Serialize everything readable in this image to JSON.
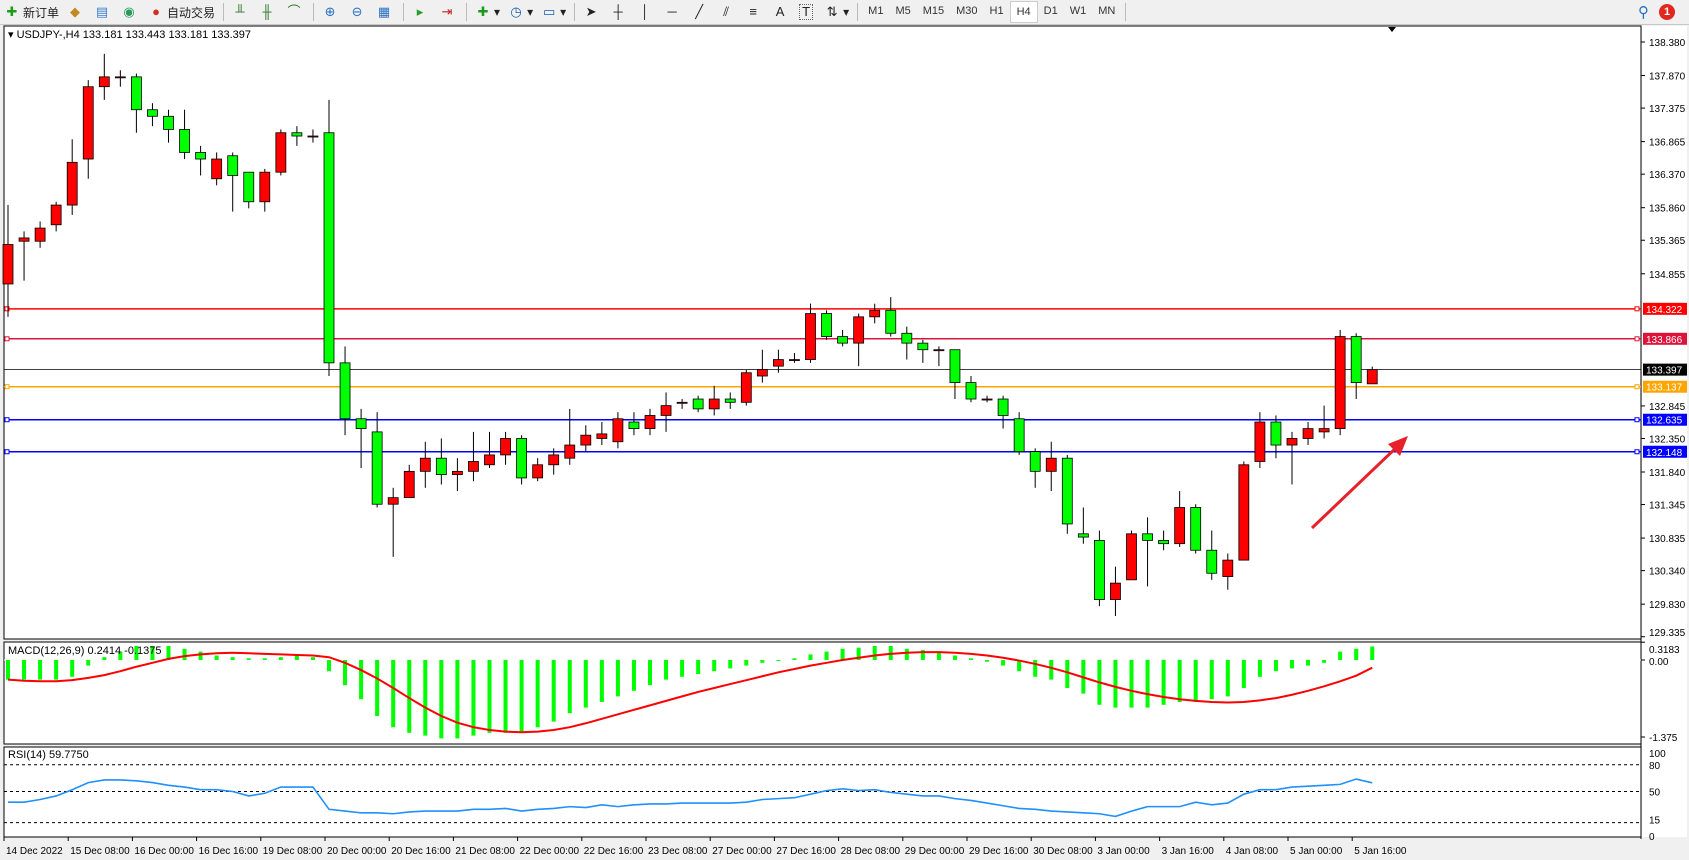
{
  "toolbar": {
    "new_order": "新订单",
    "auto_trading": "自动交易",
    "icons": [
      "new-order-icon",
      "market-watch-icon",
      "navigator-icon",
      "signal-icon",
      "auto-trading-icon",
      "bar-chart-icon",
      "candlestick-icon",
      "line-chart-icon",
      "zoom-in-icon",
      "zoom-out-icon",
      "tile-windows-icon",
      "autoscroll-icon",
      "chart-shift-icon",
      "indicators-icon",
      "periods-icon",
      "templates-icon",
      "cursor-icon",
      "crosshair-icon",
      "vertical-line-icon",
      "horizontal-line-icon",
      "trendline-icon",
      "equidistant-channel-icon",
      "fibonacci-icon",
      "text-icon",
      "text-label-icon",
      "arrows-icon"
    ],
    "text_tool": "A",
    "label_tool": "T",
    "timeframes": [
      "M1",
      "M5",
      "M15",
      "M30",
      "H1",
      "H4",
      "D1",
      "W1",
      "MN"
    ],
    "selected_timeframe": "H4",
    "notification_count": "1"
  },
  "chart": {
    "header": "USDJPY-,H4  133.181 133.443 133.181 133.397",
    "symbol": "USDJPY-",
    "timeframe": "H4",
    "open": 133.181,
    "high": 133.443,
    "low": 133.181,
    "close": 133.397,
    "bull_color": "#ff0000",
    "bear_color": "#00ff00",
    "price_ticks": [
      "138.380",
      "137.870",
      "137.375",
      "136.865",
      "136.370",
      "135.860",
      "135.365",
      "134.855",
      "132.845",
      "132.350",
      "131.840",
      "131.345",
      "130.835",
      "130.340",
      "129.830",
      "129.335"
    ],
    "levels": [
      {
        "price": "134.322",
        "color": "#ff0000"
      },
      {
        "price": "133.866",
        "color": "#dc143c"
      },
      {
        "price": "133.397",
        "color": "#000000",
        "current": true
      },
      {
        "price": "133.137",
        "color": "#ffa500"
      },
      {
        "price": "132.635",
        "color": "#0000ff"
      },
      {
        "price": "132.148",
        "color": "#0000ff"
      }
    ],
    "arrow_color": "#e8202a",
    "time_labels": [
      "14 Dec 2022",
      "15 Dec 08:00",
      "16 Dec 00:00",
      "16 Dec 16:00",
      "19 Dec 08:00",
      "20 Dec 00:00",
      "20 Dec 16:00",
      "21 Dec 08:00",
      "22 Dec 00:00",
      "22 Dec 16:00",
      "23 Dec 08:00",
      "27 Dec 00:00",
      "27 Dec 16:00",
      "28 Dec 08:00",
      "29 Dec 00:00",
      "29 Dec 16:00",
      "30 Dec 08:00",
      "3 Jan 00:00",
      "3 Jan 16:00",
      "4 Jan 08:00",
      "5 Jan 00:00",
      "5 Jan 16:00"
    ]
  },
  "chart_data": [
    {
      "type": "candlestick",
      "ohlc": [
        [
          134.7,
          135.9,
          134.2,
          135.3
        ],
        [
          135.35,
          135.5,
          134.75,
          135.4
        ],
        [
          135.35,
          135.65,
          135.25,
          135.55
        ],
        [
          135.6,
          135.95,
          135.5,
          135.9
        ],
        [
          135.9,
          136.9,
          135.75,
          136.55
        ],
        [
          136.6,
          137.8,
          136.3,
          137.7
        ],
        [
          137.7,
          138.2,
          137.5,
          137.85
        ],
        [
          137.85,
          137.95,
          137.7,
          137.85
        ],
        [
          137.85,
          137.9,
          137.0,
          137.35
        ],
        [
          137.35,
          137.45,
          137.1,
          137.25
        ],
        [
          137.25,
          137.35,
          136.85,
          137.05
        ],
        [
          137.05,
          137.35,
          136.6,
          136.7
        ],
        [
          136.7,
          136.8,
          136.35,
          136.6
        ],
        [
          136.3,
          136.7,
          136.2,
          136.6
        ],
        [
          136.65,
          136.7,
          135.8,
          136.35
        ],
        [
          136.4,
          136.4,
          135.85,
          135.95
        ],
        [
          135.95,
          136.45,
          135.8,
          136.4
        ],
        [
          136.4,
          137.05,
          136.35,
          137.0
        ],
        [
          137.0,
          137.1,
          136.8,
          136.95
        ],
        [
          136.95,
          137.05,
          136.85,
          136.95
        ],
        [
          137.0,
          137.5,
          133.3,
          133.5
        ],
        [
          133.5,
          133.75,
          132.4,
          132.65
        ],
        [
          132.65,
          132.8,
          131.9,
          132.5
        ],
        [
          132.45,
          132.75,
          131.3,
          131.35
        ],
        [
          131.35,
          131.6,
          130.55,
          131.45
        ],
        [
          131.45,
          131.95,
          131.45,
          131.85
        ],
        [
          131.85,
          132.3,
          131.6,
          132.05
        ],
        [
          132.05,
          132.35,
          131.65,
          131.8
        ],
        [
          131.8,
          132.05,
          131.55,
          131.85
        ],
        [
          131.85,
          132.45,
          131.7,
          132.0
        ],
        [
          131.95,
          132.45,
          131.9,
          132.1
        ],
        [
          132.1,
          132.45,
          131.95,
          132.35
        ],
        [
          132.35,
          132.4,
          131.65,
          131.75
        ],
        [
          131.75,
          132.05,
          131.7,
          131.95
        ],
        [
          131.95,
          132.2,
          131.8,
          132.1
        ],
        [
          132.05,
          132.8,
          131.95,
          132.25
        ],
        [
          132.25,
          132.55,
          132.15,
          132.4
        ],
        [
          132.35,
          132.6,
          132.25,
          132.42
        ],
        [
          132.3,
          132.75,
          132.2,
          132.65
        ],
        [
          132.6,
          132.75,
          132.4,
          132.5
        ],
        [
          132.5,
          132.8,
          132.4,
          132.7
        ],
        [
          132.7,
          133.05,
          132.45,
          132.85
        ],
        [
          132.9,
          132.95,
          132.8,
          132.9
        ],
        [
          132.95,
          133.0,
          132.75,
          132.8
        ],
        [
          132.8,
          133.15,
          132.7,
          132.95
        ],
        [
          132.95,
          133.05,
          132.8,
          132.9
        ],
        [
          132.9,
          133.4,
          132.85,
          133.35
        ],
        [
          133.3,
          133.7,
          133.2,
          133.4
        ],
        [
          133.45,
          133.7,
          133.35,
          133.55
        ],
        [
          133.55,
          133.65,
          133.5,
          133.55
        ],
        [
          133.55,
          134.4,
          133.5,
          134.25
        ],
        [
          134.25,
          134.3,
          133.85,
          133.9
        ],
        [
          133.9,
          134.0,
          133.75,
          133.8
        ],
        [
          133.8,
          134.25,
          133.45,
          134.2
        ],
        [
          134.2,
          134.4,
          134.1,
          134.3
        ],
        [
          134.3,
          134.5,
          133.9,
          133.95
        ],
        [
          133.95,
          134.05,
          133.55,
          133.8
        ],
        [
          133.8,
          133.85,
          133.5,
          133.7
        ],
        [
          133.7,
          133.75,
          133.45,
          133.7
        ],
        [
          133.7,
          133.7,
          132.95,
          133.2
        ],
        [
          133.2,
          133.3,
          132.9,
          132.95
        ],
        [
          132.95,
          133.0,
          132.9,
          132.95
        ],
        [
          132.95,
          133.0,
          132.5,
          132.7
        ],
        [
          132.65,
          132.75,
          132.1,
          132.15
        ],
        [
          132.15,
          132.2,
          131.6,
          131.85
        ],
        [
          131.85,
          132.3,
          131.55,
          132.05
        ],
        [
          132.05,
          132.1,
          130.9,
          131.05
        ],
        [
          130.9,
          131.3,
          130.75,
          130.85
        ],
        [
          130.8,
          130.95,
          129.8,
          129.9
        ],
        [
          129.9,
          130.4,
          129.65,
          130.15
        ],
        [
          130.2,
          130.95,
          130.2,
          130.9
        ],
        [
          130.9,
          131.15,
          130.1,
          130.8
        ],
        [
          130.8,
          130.95,
          130.65,
          130.75
        ],
        [
          130.75,
          131.55,
          130.7,
          131.3
        ],
        [
          131.3,
          131.35,
          130.6,
          130.65
        ],
        [
          130.65,
          130.95,
          130.2,
          130.3
        ],
        [
          130.25,
          130.6,
          130.05,
          130.5
        ],
        [
          130.5,
          132.0,
          130.5,
          131.95
        ],
        [
          132.0,
          132.75,
          131.9,
          132.6
        ],
        [
          132.6,
          132.7,
          132.05,
          132.25
        ],
        [
          132.25,
          132.45,
          131.65,
          132.35
        ],
        [
          132.35,
          132.6,
          132.25,
          132.5
        ],
        [
          132.45,
          132.85,
          132.35,
          132.5
        ],
        [
          132.5,
          134.0,
          132.4,
          133.9
        ],
        [
          133.9,
          133.95,
          132.95,
          133.2
        ],
        [
          133.181,
          133.443,
          133.181,
          133.397
        ]
      ],
      "ylim": [
        129.335,
        138.6
      ]
    },
    {
      "type": "bar",
      "title": "MACD(12,26,9) 0.2414 -0.1375",
      "ticks": [
        "0.3183",
        "0.00",
        "-1.375"
      ],
      "ylim": [
        -1.45,
        0.4
      ],
      "histogram_color": "#00ff00",
      "signal_color": "#ff0000",
      "histogram": [
        -0.35,
        -0.35,
        -0.35,
        -0.35,
        -0.3,
        -0.1,
        0.05,
        0.15,
        0.25,
        0.25,
        0.25,
        0.2,
        0.15,
        0.08,
        0.05,
        0.03,
        0.03,
        0.05,
        0.08,
        0.05,
        -0.2,
        -0.45,
        -0.7,
        -1.0,
        -1.2,
        -1.3,
        -1.35,
        -1.4,
        -1.4,
        -1.35,
        -1.3,
        -1.3,
        -1.3,
        -1.2,
        -1.1,
        -0.95,
        -0.85,
        -0.75,
        -0.65,
        -0.55,
        -0.45,
        -0.35,
        -0.3,
        -0.25,
        -0.2,
        -0.15,
        -0.1,
        -0.05,
        0.0,
        0.03,
        0.1,
        0.15,
        0.2,
        0.22,
        0.25,
        0.25,
        0.2,
        0.18,
        0.15,
        0.08,
        0.03,
        -0.03,
        -0.1,
        -0.2,
        -0.3,
        -0.35,
        -0.5,
        -0.6,
        -0.8,
        -0.85,
        -0.85,
        -0.85,
        -0.8,
        -0.75,
        -0.75,
        -0.7,
        -0.65,
        -0.5,
        -0.3,
        -0.2,
        -0.15,
        -0.1,
        -0.05,
        0.15,
        0.2,
        0.2414
      ],
      "signal": [
        -0.35,
        -0.37,
        -0.38,
        -0.38,
        -0.36,
        -0.32,
        -0.27,
        -0.2,
        -0.12,
        -0.05,
        0.02,
        0.07,
        0.1,
        0.12,
        0.13,
        0.12,
        0.11,
        0.1,
        0.09,
        0.08,
        0.05,
        -0.05,
        -0.18,
        -0.33,
        -0.5,
        -0.68,
        -0.85,
        -1.0,
        -1.12,
        -1.2,
        -1.25,
        -1.28,
        -1.29,
        -1.28,
        -1.25,
        -1.2,
        -1.13,
        -1.05,
        -0.97,
        -0.89,
        -0.81,
        -0.73,
        -0.65,
        -0.57,
        -0.5,
        -0.43,
        -0.36,
        -0.29,
        -0.22,
        -0.16,
        -0.1,
        -0.05,
        0.0,
        0.04,
        0.08,
        0.11,
        0.13,
        0.14,
        0.14,
        0.13,
        0.11,
        0.08,
        0.04,
        -0.01,
        -0.07,
        -0.14,
        -0.22,
        -0.31,
        -0.4,
        -0.48,
        -0.55,
        -0.61,
        -0.66,
        -0.7,
        -0.73,
        -0.75,
        -0.76,
        -0.75,
        -0.72,
        -0.68,
        -0.62,
        -0.55,
        -0.47,
        -0.38,
        -0.28,
        -0.1375
      ]
    },
    {
      "type": "line",
      "title": "RSI(14) 59.7750",
      "ticks": [
        "100",
        "80",
        "50",
        "15",
        "0"
      ],
      "levels": [
        80,
        50,
        15
      ],
      "ylim": [
        0,
        100
      ],
      "color": "#1e90ff",
      "values": [
        38,
        38,
        41,
        45,
        52,
        60,
        63,
        63,
        62,
        60,
        57,
        55,
        52,
        52,
        50,
        45,
        48,
        55,
        55,
        55,
        30,
        28,
        26,
        26,
        25,
        27,
        28,
        28,
        28,
        30,
        30,
        31,
        28,
        30,
        31,
        33,
        32,
        35,
        33,
        35,
        36,
        36,
        37,
        37,
        37,
        37,
        38,
        41,
        42,
        43,
        47,
        51,
        53,
        51,
        52,
        49,
        47,
        45,
        45,
        42,
        40,
        37,
        34,
        31,
        30,
        28,
        27,
        26,
        25,
        22,
        28,
        33,
        33,
        33,
        38,
        35,
        37,
        47,
        52,
        52,
        55,
        56,
        57,
        58,
        64,
        59.775
      ]
    }
  ]
}
